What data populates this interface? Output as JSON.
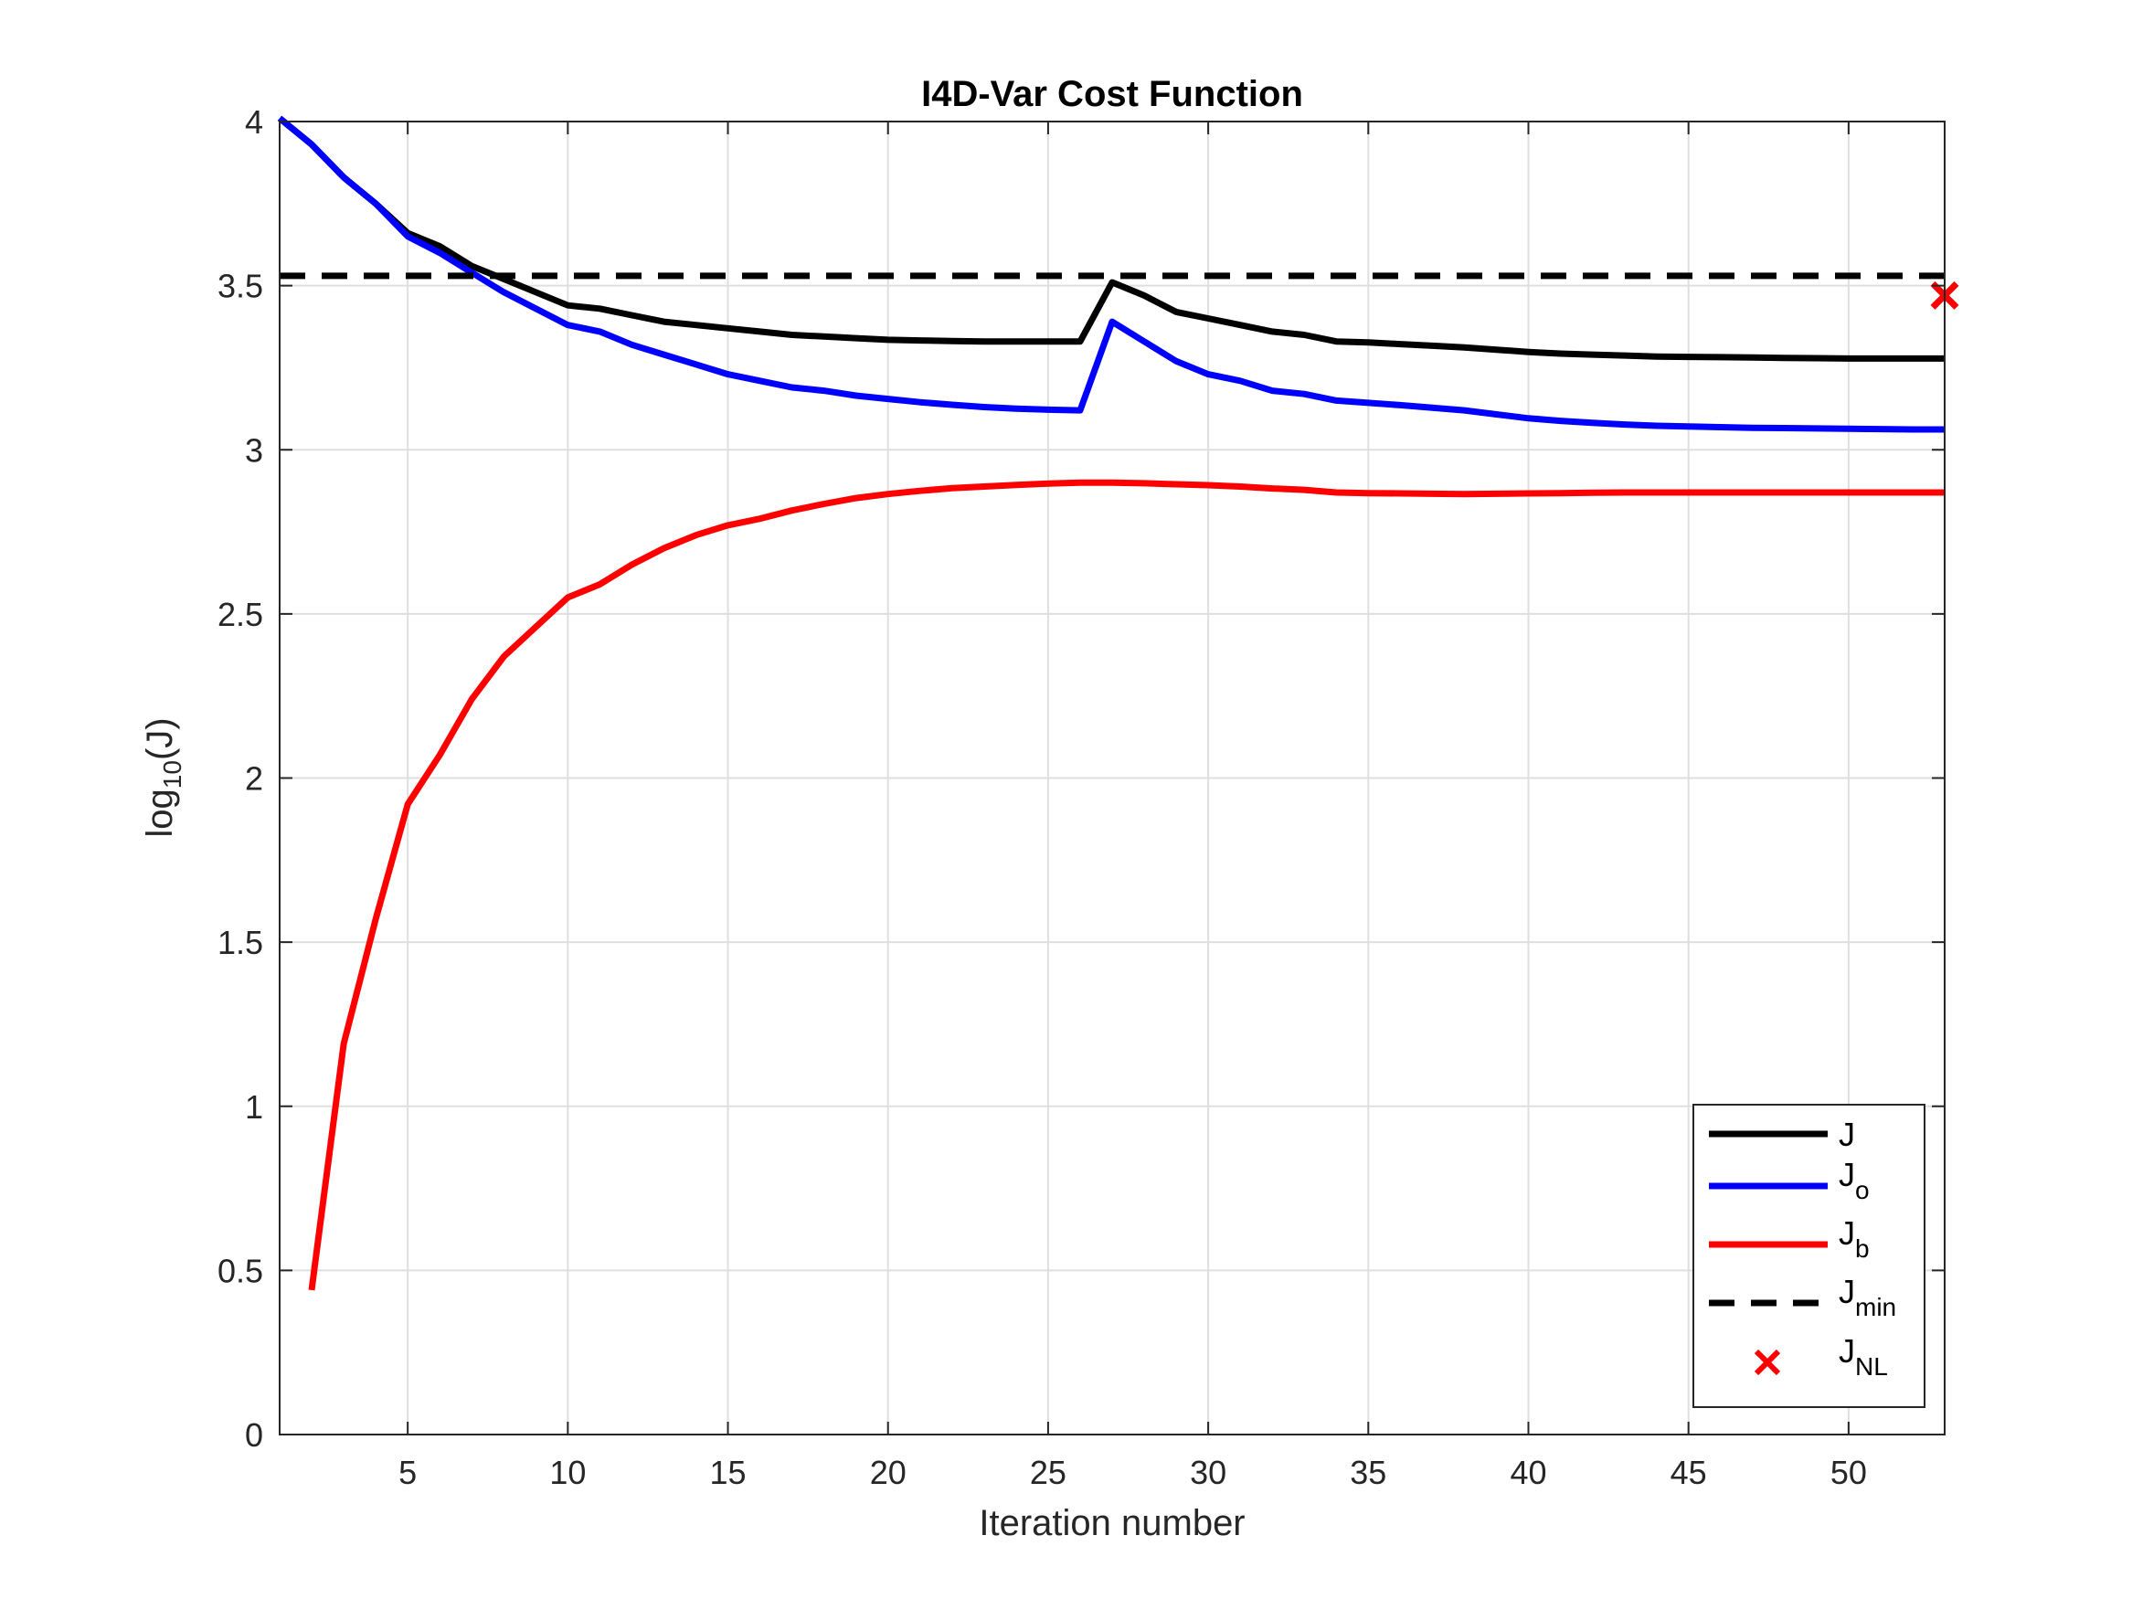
{
  "chart_data": {
    "type": "line",
    "title": "I4D-Var Cost Function",
    "xlabel": "Iteration number",
    "ylabel": {
      "base": "log",
      "subscript": "10",
      "suffix": "(J)"
    },
    "xlim": [
      1,
      53
    ],
    "ylim": [
      0,
      4
    ],
    "xticks": [
      5,
      10,
      15,
      20,
      25,
      30,
      35,
      40,
      45,
      50
    ],
    "yticks": [
      0,
      0.5,
      1,
      1.5,
      2,
      2.5,
      3,
      3.5,
      4
    ],
    "ytick_labels": [
      "0",
      "0.5",
      "1",
      "1.5",
      "2",
      "2.5",
      "3",
      "3.5",
      "4"
    ],
    "grid": true,
    "legend_position": "bottom-right",
    "series": [
      {
        "key": "J",
        "legend": {
          "main": "J",
          "sub": ""
        },
        "color": "#000000",
        "style": "solid",
        "x": [
          1,
          2,
          3,
          4,
          5,
          6,
          7,
          8,
          9,
          10,
          11,
          12,
          13,
          14,
          15,
          16,
          17,
          18,
          19,
          20,
          21,
          22,
          23,
          24,
          25,
          26,
          27,
          28,
          29,
          30,
          31,
          32,
          33,
          34,
          35,
          36,
          37,
          38,
          39,
          40,
          41,
          42,
          43,
          44,
          45,
          46,
          47,
          48,
          49,
          50,
          51,
          52,
          53
        ],
        "y": [
          4.01,
          3.93,
          3.83,
          3.75,
          3.66,
          3.62,
          3.56,
          3.52,
          3.48,
          3.44,
          3.43,
          3.41,
          3.39,
          3.38,
          3.37,
          3.36,
          3.35,
          3.345,
          3.34,
          3.335,
          3.333,
          3.331,
          3.33,
          3.33,
          3.33,
          3.33,
          3.51,
          3.47,
          3.42,
          3.4,
          3.38,
          3.36,
          3.35,
          3.33,
          3.327,
          3.322,
          3.317,
          3.312,
          3.305,
          3.298,
          3.293,
          3.29,
          3.287,
          3.284,
          3.283,
          3.282,
          3.281,
          3.28,
          3.279,
          3.278,
          3.278,
          3.278,
          3.278
        ]
      },
      {
        "key": "Jo",
        "legend": {
          "main": "J",
          "sub": "o"
        },
        "color": "#0000ff",
        "style": "solid",
        "x": [
          1,
          2,
          3,
          4,
          5,
          6,
          7,
          8,
          9,
          10,
          11,
          12,
          13,
          14,
          15,
          16,
          17,
          18,
          19,
          20,
          21,
          22,
          23,
          24,
          25,
          26,
          27,
          28,
          29,
          30,
          31,
          32,
          33,
          34,
          35,
          36,
          37,
          38,
          39,
          40,
          41,
          42,
          43,
          44,
          45,
          46,
          47,
          48,
          49,
          50,
          51,
          52,
          53
        ],
        "y": [
          4.01,
          3.93,
          3.83,
          3.75,
          3.65,
          3.6,
          3.54,
          3.48,
          3.43,
          3.38,
          3.36,
          3.32,
          3.29,
          3.26,
          3.23,
          3.21,
          3.19,
          3.18,
          3.165,
          3.155,
          3.145,
          3.137,
          3.13,
          3.125,
          3.122,
          3.12,
          3.39,
          3.33,
          3.27,
          3.23,
          3.21,
          3.18,
          3.17,
          3.15,
          3.143,
          3.136,
          3.128,
          3.12,
          3.108,
          3.096,
          3.088,
          3.082,
          3.077,
          3.073,
          3.071,
          3.069,
          3.067,
          3.066,
          3.065,
          3.064,
          3.063,
          3.062,
          3.062
        ]
      },
      {
        "key": "Jb",
        "legend": {
          "main": "J",
          "sub": "b"
        },
        "color": "#ff0000",
        "style": "solid",
        "x": [
          2,
          3,
          4,
          5,
          6,
          7,
          8,
          9,
          10,
          11,
          12,
          13,
          14,
          15,
          16,
          17,
          18,
          19,
          20,
          21,
          22,
          23,
          24,
          25,
          26,
          27,
          28,
          29,
          30,
          31,
          32,
          33,
          34,
          35,
          36,
          37,
          38,
          39,
          40,
          41,
          42,
          43,
          44,
          45,
          46,
          47,
          48,
          49,
          50,
          51,
          52,
          53
        ],
        "y": [
          0.44,
          1.19,
          1.57,
          1.92,
          2.07,
          2.24,
          2.37,
          2.46,
          2.55,
          2.59,
          2.65,
          2.7,
          2.74,
          2.77,
          2.79,
          2.815,
          2.835,
          2.853,
          2.865,
          2.875,
          2.883,
          2.888,
          2.893,
          2.897,
          2.9,
          2.9,
          2.898,
          2.895,
          2.892,
          2.888,
          2.882,
          2.878,
          2.87,
          2.868,
          2.867,
          2.866,
          2.865,
          2.866,
          2.867,
          2.868,
          2.869,
          2.87,
          2.87,
          2.87,
          2.87,
          2.87,
          2.87,
          2.87,
          2.87,
          2.87,
          2.87,
          2.87
        ]
      }
    ],
    "jmin": {
      "key": "Jmin",
      "legend": {
        "main": "J",
        "sub": "min"
      },
      "color": "#000000",
      "style": "dashed",
      "y": 3.53
    },
    "jnl": {
      "key": "JNL",
      "legend": {
        "main": "J",
        "sub": "NL"
      },
      "color": "#ff0000",
      "marker": "x",
      "x": 53,
      "y": 3.47
    }
  }
}
